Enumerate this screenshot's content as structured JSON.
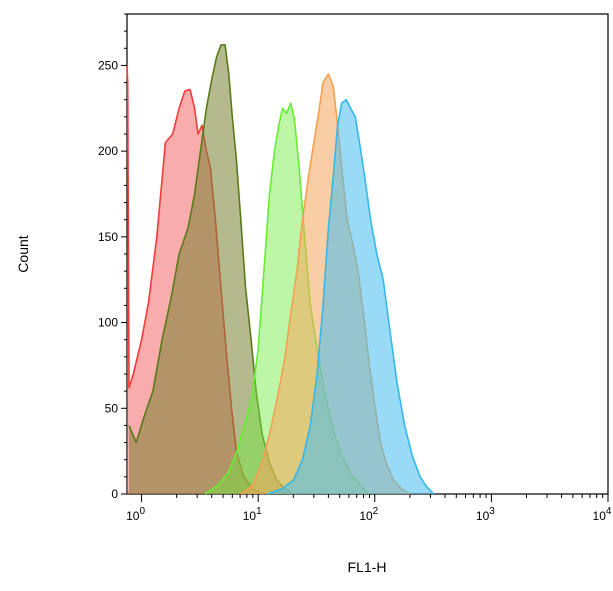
{
  "chart_data": {
    "type": "area",
    "title": "",
    "xlabel": "FL1-H",
    "ylabel": "Count",
    "xscale": "log",
    "xlim": [
      0.75,
      10000
    ],
    "ylim": [
      0,
      280
    ],
    "grid": false,
    "x_ticks": [
      {
        "value": 1,
        "base": "10",
        "exp": "0"
      },
      {
        "value": 10,
        "base": "10",
        "exp": "1"
      },
      {
        "value": 100,
        "base": "10",
        "exp": "2"
      },
      {
        "value": 1000,
        "base": "10",
        "exp": "3"
      },
      {
        "value": 10000,
        "base": "10",
        "exp": "4"
      }
    ],
    "y_ticks": [
      0,
      50,
      100,
      150,
      200,
      250
    ],
    "series": [
      {
        "color": "#f23c3c",
        "fill": "rgba(242,70,70,0.45)",
        "points": [
          [
            0.75,
            250
          ],
          [
            0.76,
            240
          ],
          [
            0.78,
            62
          ],
          [
            0.85,
            70
          ],
          [
            1.0,
            90
          ],
          [
            1.15,
            112
          ],
          [
            1.35,
            150
          ],
          [
            1.6,
            205
          ],
          [
            1.85,
            210
          ],
          [
            2.1,
            225
          ],
          [
            2.35,
            235
          ],
          [
            2.6,
            236
          ],
          [
            2.85,
            225
          ],
          [
            3.05,
            210
          ],
          [
            3.3,
            215
          ],
          [
            3.6,
            200
          ],
          [
            3.9,
            190
          ],
          [
            4.3,
            160
          ],
          [
            4.8,
            120
          ],
          [
            5.3,
            85
          ],
          [
            5.9,
            50
          ],
          [
            6.5,
            25
          ],
          [
            7.5,
            10
          ],
          [
            9,
            3
          ],
          [
            11,
            0
          ]
        ]
      },
      {
        "color": "#5a7a1a",
        "fill": "rgba(120,130,50,0.55)",
        "points": [
          [
            0.78,
            40
          ],
          [
            0.9,
            30
          ],
          [
            1.05,
            45
          ],
          [
            1.25,
            60
          ],
          [
            1.5,
            90
          ],
          [
            1.8,
            115
          ],
          [
            2.1,
            140
          ],
          [
            2.5,
            155
          ],
          [
            2.85,
            175
          ],
          [
            3.2,
            200
          ],
          [
            3.6,
            225
          ],
          [
            4.0,
            242
          ],
          [
            4.4,
            255
          ],
          [
            4.8,
            262
          ],
          [
            5.2,
            262
          ],
          [
            5.6,
            245
          ],
          [
            6.0,
            220
          ],
          [
            6.5,
            195
          ],
          [
            7.1,
            160
          ],
          [
            7.8,
            120
          ],
          [
            8.7,
            90
          ],
          [
            9.6,
            60
          ],
          [
            10.8,
            35
          ],
          [
            12.5,
            18
          ],
          [
            14.5,
            8
          ],
          [
            17,
            3
          ],
          [
            20,
            0
          ]
        ]
      },
      {
        "color": "#66ee33",
        "fill": "rgba(110,235,60,0.45)",
        "points": [
          [
            3.5,
            0
          ],
          [
            4.5,
            5
          ],
          [
            5.5,
            12
          ],
          [
            6.6,
            25
          ],
          [
            7.6,
            40
          ],
          [
            8.8,
            55
          ],
          [
            10,
            85
          ],
          [
            11.2,
            130
          ],
          [
            12.5,
            175
          ],
          [
            13.8,
            200
          ],
          [
            15,
            215
          ],
          [
            16.2,
            225
          ],
          [
            17.5,
            222
          ],
          [
            19,
            228
          ],
          [
            20.5,
            218
          ],
          [
            22.5,
            190
          ],
          [
            25,
            150
          ],
          [
            28,
            110
          ],
          [
            32,
            85
          ],
          [
            37,
            60
          ],
          [
            43,
            40
          ],
          [
            52,
            22
          ],
          [
            62,
            12
          ],
          [
            75,
            5
          ],
          [
            90,
            0
          ]
        ]
      },
      {
        "color": "#f5a050",
        "fill": "rgba(245,165,90,0.55)",
        "points": [
          [
            7,
            0
          ],
          [
            9,
            5
          ],
          [
            11,
            20
          ],
          [
            13,
            40
          ],
          [
            15,
            60
          ],
          [
            17,
            80
          ],
          [
            19,
            105
          ],
          [
            21.5,
            130
          ],
          [
            24,
            160
          ],
          [
            27,
            185
          ],
          [
            30,
            205
          ],
          [
            33,
            222
          ],
          [
            36,
            240
          ],
          [
            40,
            245
          ],
          [
            44,
            238
          ],
          [
            48,
            215
          ],
          [
            53,
            185
          ],
          [
            58,
            160
          ],
          [
            65,
            145
          ],
          [
            72,
            130
          ],
          [
            80,
            105
          ],
          [
            90,
            75
          ],
          [
            100,
            52
          ],
          [
            112,
            30
          ],
          [
            125,
            18
          ],
          [
            145,
            8
          ],
          [
            170,
            3
          ],
          [
            200,
            0
          ]
        ]
      },
      {
        "color": "#33b8ee",
        "fill": "rgba(70,190,240,0.55)",
        "points": [
          [
            12,
            0
          ],
          [
            16,
            3
          ],
          [
            20,
            8
          ],
          [
            24,
            20
          ],
          [
            28,
            40
          ],
          [
            32,
            70
          ],
          [
            36,
            110
          ],
          [
            40,
            155
          ],
          [
            44,
            185
          ],
          [
            48,
            215
          ],
          [
            52,
            228
          ],
          [
            57,
            230
          ],
          [
            62,
            225
          ],
          [
            68,
            220
          ],
          [
            74,
            205
          ],
          [
            82,
            185
          ],
          [
            92,
            160
          ],
          [
            104,
            140
          ],
          [
            118,
            125
          ],
          [
            135,
            95
          ],
          [
            155,
            65
          ],
          [
            180,
            40
          ],
          [
            210,
            22
          ],
          [
            245,
            10
          ],
          [
            280,
            4
          ],
          [
            320,
            0
          ]
        ]
      }
    ]
  }
}
